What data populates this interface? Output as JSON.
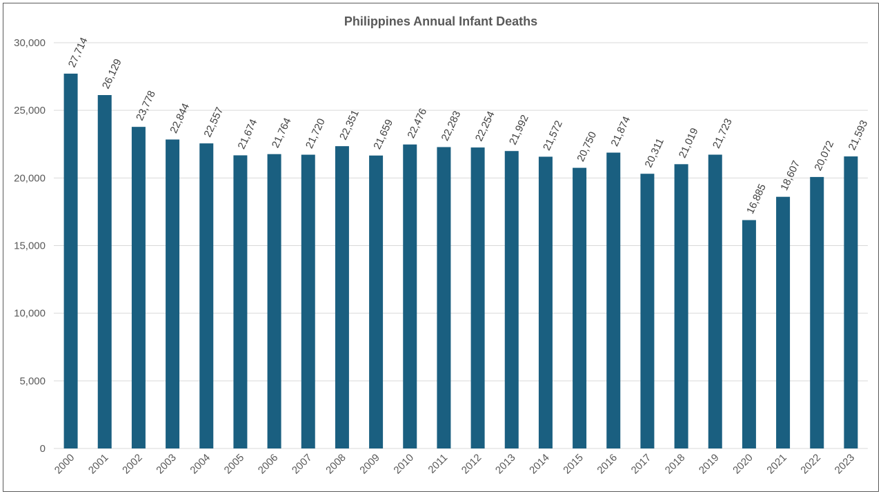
{
  "chart_data": {
    "type": "bar",
    "title": "Philippines Annual Infant Deaths",
    "xlabel": "",
    "ylabel": "",
    "categories": [
      "2000",
      "2001",
      "2002",
      "2003",
      "2004",
      "2005",
      "2006",
      "2007",
      "2008",
      "2009",
      "2010",
      "2011",
      "2012",
      "2013",
      "2014",
      "2015",
      "2016",
      "2017",
      "2018",
      "2019",
      "2020",
      "2021",
      "2022",
      "2023"
    ],
    "values": [
      27714,
      26129,
      23778,
      22844,
      22557,
      21674,
      21764,
      21720,
      22351,
      21659,
      22476,
      22283,
      22254,
      21992,
      21572,
      20750,
      21874,
      20311,
      21019,
      21723,
      16885,
      18607,
      20072,
      21593
    ],
    "data_labels": [
      "27,714",
      "26,129",
      "23,778",
      "22,844",
      "22,557",
      "21,674",
      "21,764",
      "21,720",
      "22,351",
      "21,659",
      "22,476",
      "22,283",
      "22,254",
      "21,992",
      "21,572",
      "20,750",
      "21,874",
      "20,311",
      "21,019",
      "21,723",
      "16,885",
      "18,607",
      "20,072",
      "21,593"
    ],
    "ylim": [
      0,
      30000
    ],
    "yticks": [
      0,
      5000,
      10000,
      15000,
      20000,
      25000,
      30000
    ],
    "ytick_labels": [
      "0",
      "5,000",
      "10,000",
      "15,000",
      "20,000",
      "25,000",
      "30,000"
    ],
    "grid": true,
    "legend": "none",
    "bar_color": "#1a5f80",
    "gridline_color": "#d9d9d9"
  }
}
